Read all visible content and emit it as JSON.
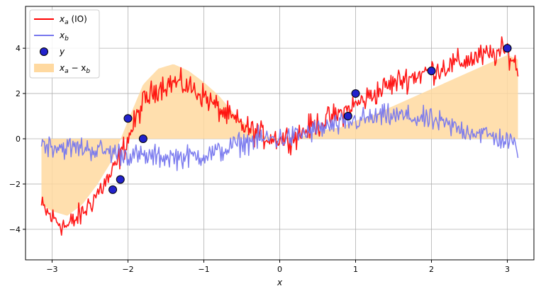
{
  "chart_data": {
    "type": "line",
    "xlabel": "x",
    "ylabel": "",
    "xlim": [
      -3.35,
      3.35
    ],
    "ylim": [
      -5.35,
      5.85
    ],
    "xticks": [
      -3,
      -2,
      -1,
      0,
      1,
      2,
      3
    ],
    "yticks": [
      -4,
      -2,
      0,
      2,
      4
    ],
    "xtick_labels": [
      "−3",
      "−2",
      "−1",
      "0",
      "1",
      "2",
      "3"
    ],
    "ytick_labels": [
      "−4",
      "−2",
      "0",
      "2",
      "4"
    ],
    "grid": true,
    "legend": {
      "placement": "top-left",
      "entries": [
        {
          "label_main": "x",
          "label_sub": "a",
          "label_suffix": " (IO)",
          "kind": "line",
          "color": "#ff0000"
        },
        {
          "label_main": "x",
          "label_sub": "b",
          "label_suffix": "",
          "kind": "line",
          "color": "#7777ee"
        },
        {
          "label_main": "y",
          "label_sub": "",
          "label_suffix": "",
          "kind": "marker",
          "color": "#2222cc"
        },
        {
          "label_main": "x",
          "label_sub": "a",
          "label_suffix": " − x",
          "label_sub2": "b",
          "kind": "fill",
          "color": "#ffd9a0"
        }
      ]
    },
    "series": [
      {
        "name": "x_a (IO)",
        "color": "#ff0000",
        "x": [
          -3.14,
          -3.0,
          -2.8,
          -2.6,
          -2.4,
          -2.2,
          -2.0,
          -1.8,
          -1.6,
          -1.4,
          -1.2,
          -1.0,
          -0.8,
          -0.6,
          -0.4,
          -0.2,
          0.0,
          0.2,
          0.4,
          0.6,
          0.8,
          1.0,
          1.2,
          1.4,
          1.6,
          1.8,
          2.0,
          2.2,
          2.4,
          2.6,
          2.8,
          3.0,
          3.14
        ],
        "y": [
          -3.0,
          -3.5,
          -3.9,
          -3.3,
          -2.4,
          -1.5,
          0.0,
          1.6,
          2.3,
          2.5,
          2.3,
          1.9,
          1.3,
          0.8,
          0.4,
          0.1,
          0.0,
          0.1,
          0.5,
          0.8,
          1.1,
          1.5,
          1.9,
          2.3,
          2.6,
          2.8,
          3.0,
          3.2,
          3.4,
          3.6,
          3.7,
          3.9,
          3.1
        ],
        "noise": 0.55
      },
      {
        "name": "x_b",
        "color": "#7777ee",
        "x": [
          -3.14,
          -3.0,
          -2.8,
          -2.6,
          -2.4,
          -2.2,
          -2.0,
          -1.8,
          -1.6,
          -1.4,
          -1.2,
          -1.0,
          -0.8,
          -0.6,
          -0.4,
          -0.2,
          0.0,
          0.2,
          0.4,
          0.6,
          0.8,
          1.0,
          1.2,
          1.4,
          1.6,
          1.8,
          2.0,
          2.2,
          2.4,
          2.6,
          2.8,
          3.0,
          3.14
        ],
        "y": [
          -0.2,
          -0.3,
          -0.4,
          -0.4,
          -0.5,
          -0.6,
          -0.7,
          -0.8,
          -0.8,
          -0.8,
          -0.8,
          -0.7,
          -0.6,
          -0.3,
          -0.1,
          0.0,
          0.0,
          0.1,
          0.3,
          0.5,
          0.6,
          0.8,
          0.9,
          1.0,
          1.0,
          0.9,
          0.8,
          0.6,
          0.4,
          0.3,
          0.1,
          -0.1,
          -0.4
        ],
        "noise": 0.5
      },
      {
        "name": "y",
        "color": "#2222cc",
        "points": [
          {
            "x": -2.2,
            "y": -2.25
          },
          {
            "x": -2.1,
            "y": -1.8
          },
          {
            "x": -2.0,
            "y": 0.9
          },
          {
            "x": -1.8,
            "y": 0.0
          },
          {
            "x": 0.9,
            "y": 1.0
          },
          {
            "x": 1.0,
            "y": 2.0
          },
          {
            "x": 2.0,
            "y": 3.0
          },
          {
            "x": 3.0,
            "y": 4.0
          }
        ]
      },
      {
        "name": "x_a − x_b",
        "color": "#ffd9a0",
        "x": [
          -3.14,
          -3.0,
          -2.8,
          -2.6,
          -2.4,
          -2.2,
          -2.0,
          -1.8,
          -1.6,
          -1.4,
          -1.2,
          -1.0,
          -0.8,
          -0.6,
          -0.4,
          -0.2,
          0.0,
          0.2,
          0.4,
          0.6,
          0.8,
          1.0,
          1.2,
          1.4,
          1.6,
          1.8,
          2.0,
          2.2,
          2.4,
          2.6,
          2.8,
          3.0,
          3.14
        ],
        "y_lower": [
          0.0,
          0.0,
          0.0,
          0.0,
          0.0,
          0.0,
          0.0,
          0.0,
          0.0,
          0.0,
          0.0,
          0.0,
          0.0,
          0.0,
          0.0,
          0.0,
          0.0,
          0.0,
          0.0,
          0.0,
          0.0,
          0.0,
          0.0,
          0.0,
          0.0,
          0.0,
          0.0,
          0.0,
          0.0,
          0.0,
          0.0,
          0.0,
          0.0
        ],
        "y_upper": [
          -2.9,
          -3.2,
          -3.4,
          -2.9,
          -2.0,
          -0.9,
          0.8,
          2.4,
          3.1,
          3.3,
          3.0,
          2.5,
          1.9,
          1.1,
          0.5,
          0.1,
          0.0,
          0.0,
          0.2,
          0.4,
          0.5,
          0.8,
          1.0,
          1.3,
          1.6,
          1.9,
          2.2,
          2.5,
          2.8,
          3.1,
          3.4,
          3.7,
          3.5
        ]
      }
    ]
  }
}
